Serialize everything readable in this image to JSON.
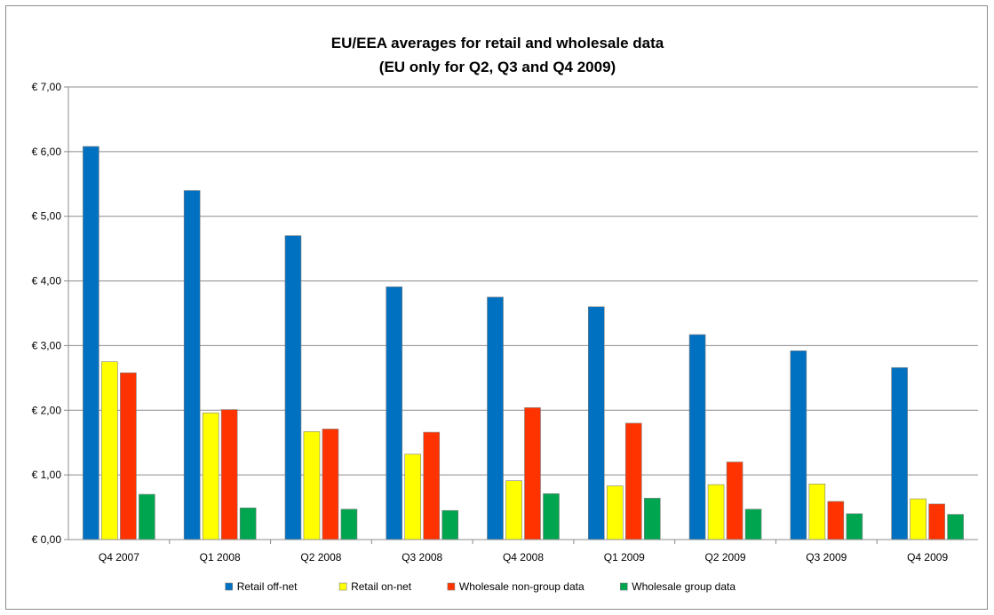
{
  "chart_data": {
    "type": "bar",
    "title": "EU/EEA averages for retail and wholesale data",
    "subtitle": "(EU only for Q2, Q3 and Q4 2009)",
    "categories": [
      "Q4 2007",
      "Q1 2008",
      "Q2 2008",
      "Q3 2008",
      "Q4 2008",
      "Q1 2009",
      "Q2 2009",
      "Q3 2009",
      "Q4 2009"
    ],
    "series": [
      {
        "name": "Retail off-net",
        "color": "#0070c0",
        "values": [
          6.08,
          5.4,
          4.7,
          3.91,
          3.75,
          3.6,
          3.17,
          2.92,
          2.66
        ]
      },
      {
        "name": "Retail on-net",
        "color": "#ffff00",
        "values": [
          2.75,
          1.96,
          1.67,
          1.32,
          0.91,
          0.83,
          0.85,
          0.86,
          0.63
        ]
      },
      {
        "name": "Wholesale non-group data",
        "color": "#ff3300",
        "values": [
          2.58,
          2.01,
          1.71,
          1.66,
          2.04,
          1.8,
          1.2,
          0.59,
          0.55
        ]
      },
      {
        "name": "Wholesale group data",
        "color": "#00a550",
        "values": [
          0.7,
          0.49,
          0.47,
          0.45,
          0.71,
          0.64,
          0.47,
          0.4,
          0.39
        ]
      }
    ],
    "yticks": [
      "€ 0,00",
      "€ 1,00",
      "€ 2,00",
      "€ 3,00",
      "€ 4,00",
      "€ 5,00",
      "€ 6,00",
      "€ 7,00"
    ],
    "ylim": [
      0,
      7
    ],
    "grid": true,
    "legend_position": "bottom"
  }
}
